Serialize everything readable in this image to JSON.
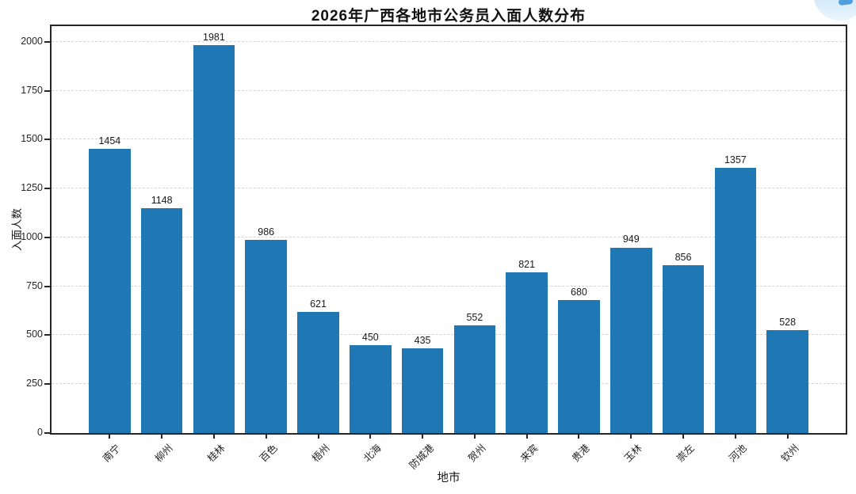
{
  "chart_data": {
    "type": "bar",
    "title": "2026年广西各地市公务员入面人数分布",
    "xlabel": "地市",
    "ylabel": "入面人数",
    "categories": [
      "南宁",
      "柳州",
      "桂林",
      "百色",
      "梧州",
      "北海",
      "防城港",
      "贺州",
      "来宾",
      "贵港",
      "玉林",
      "崇左",
      "河池",
      "钦州"
    ],
    "values": [
      1454,
      1148,
      1981,
      986,
      621,
      450,
      435,
      552,
      821,
      680,
      949,
      856,
      1357,
      528
    ],
    "yticks": [
      0,
      250,
      500,
      750,
      1000,
      1250,
      1500,
      1750,
      2000
    ],
    "ylim": [
      0,
      2080
    ],
    "bar_color": "#1f77b4",
    "grid": {
      "horizontal": true,
      "style": "dashed",
      "color": "#d4d4d4"
    },
    "legend_position": "none",
    "value_labels_shown": true
  },
  "watermark": {
    "description": "partial light-blue circular logo cropped at top-right corner",
    "colors": [
      "#c5e0f5",
      "#4f9fe0"
    ]
  }
}
